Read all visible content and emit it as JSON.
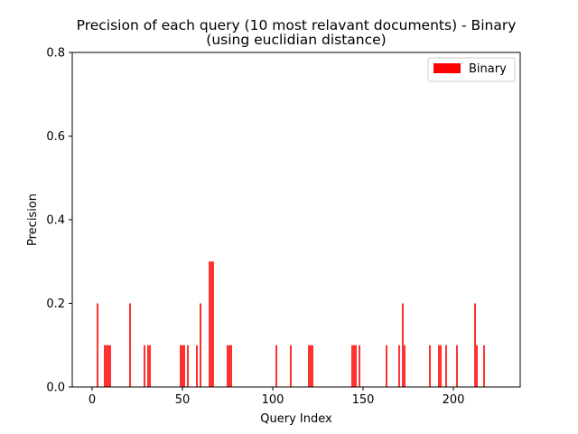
{
  "chart_data": {
    "type": "bar",
    "title_line1": "Precision of each query (10 most relavant documents) - Binary",
    "title_line2": "(using euclidian distance)",
    "xlabel": "Query Index",
    "ylabel": "Precision",
    "xlim": [
      -11,
      237
    ],
    "ylim": [
      0,
      0.8
    ],
    "xticks": [
      0,
      50,
      100,
      150,
      200
    ],
    "xtick_labels": [
      "0",
      "50",
      "100",
      "150",
      "200"
    ],
    "yticks": [
      0.0,
      0.2,
      0.4,
      0.6,
      0.8
    ],
    "ytick_labels": [
      "0.0",
      "0.2",
      "0.4",
      "0.6",
      "0.8"
    ],
    "grid": false,
    "legend_position": "top-right",
    "series": [
      {
        "name": "Binary",
        "color": "#ff0000",
        "points": [
          [
            3,
            0.2
          ],
          [
            7,
            0.1
          ],
          [
            8,
            0.1
          ],
          [
            9,
            0.1
          ],
          [
            10,
            0.1
          ],
          [
            21,
            0.2
          ],
          [
            29,
            0.1
          ],
          [
            31,
            0.1
          ],
          [
            32,
            0.1
          ],
          [
            49,
            0.1
          ],
          [
            50,
            0.1
          ],
          [
            51,
            0.1
          ],
          [
            53,
            0.1
          ],
          [
            58,
            0.1
          ],
          [
            60,
            0.2
          ],
          [
            65,
            0.3
          ],
          [
            66,
            0.3
          ],
          [
            67,
            0.3
          ],
          [
            75,
            0.1
          ],
          [
            76,
            0.1
          ],
          [
            77,
            0.1
          ],
          [
            102,
            0.1
          ],
          [
            110,
            0.1
          ],
          [
            120,
            0.1
          ],
          [
            121,
            0.1
          ],
          [
            122,
            0.1
          ],
          [
            144,
            0.1
          ],
          [
            145,
            0.1
          ],
          [
            146,
            0.1
          ],
          [
            148,
            0.1
          ],
          [
            163,
            0.1
          ],
          [
            170,
            0.1
          ],
          [
            172,
            0.2
          ],
          [
            173,
            0.1
          ],
          [
            187,
            0.1
          ],
          [
            192,
            0.1
          ],
          [
            193,
            0.1
          ],
          [
            196,
            0.1
          ],
          [
            202,
            0.1
          ],
          [
            212,
            0.2
          ],
          [
            213,
            0.1
          ],
          [
            217,
            0.1
          ]
        ]
      }
    ]
  }
}
